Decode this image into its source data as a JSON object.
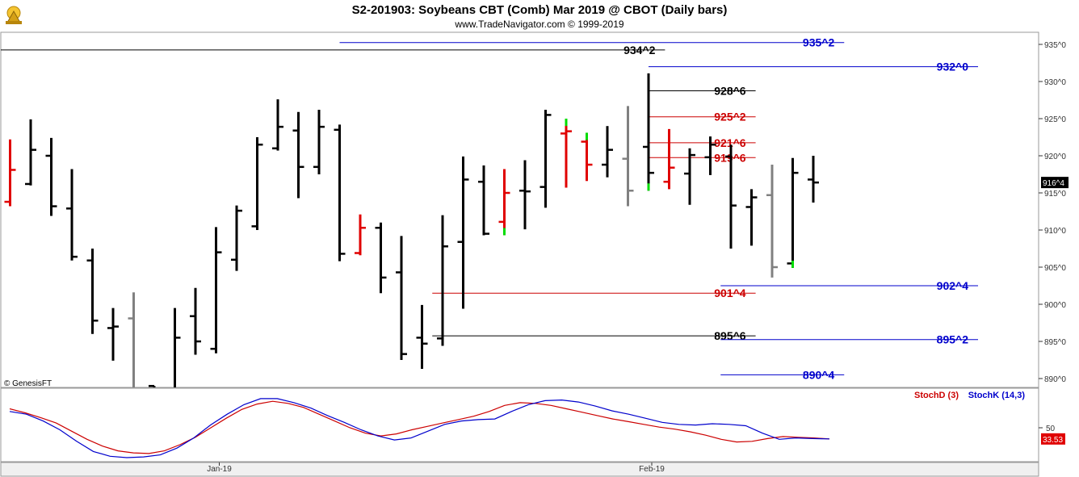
{
  "header": {
    "title": "S2-201903:  Soybeans CBT (Comb) Mar 2019 @ CBOT  (Daily bars)",
    "subtitle": "www.TradeNavigator.com © 1999-2019",
    "copyright": "© GenesisFT"
  },
  "colors": {
    "up_bar": "#000000",
    "down_bar": "#e00000",
    "neutral_bar": "#808080",
    "green_tick": "#00dd00",
    "blue_line": "#0000cc",
    "red_line": "#cc0000",
    "black_line": "#000000",
    "stoch_d": "#cc0000",
    "stoch_k": "#0000cc"
  },
  "chart_data": [
    {
      "type": "ohlc",
      "name": "price",
      "y_unit": "cents (eighths notation)",
      "ylim": [
        888,
        938
      ],
      "y_ticks": [
        890,
        895,
        900,
        905,
        910,
        915,
        920,
        925,
        930,
        935
      ],
      "y_tick_labels": [
        "890^0",
        "895^0",
        "900^0",
        "905^0",
        "910^0",
        "915^0",
        "920^0",
        "925^0",
        "930^0",
        "935^0"
      ],
      "last_price_label": "916^4",
      "x_labels": [
        {
          "label": "Jan-19",
          "index": 10
        },
        {
          "label": "Feb-19",
          "index": 31
        }
      ],
      "bars": [
        {
          "o": 913.8,
          "h": 922.2,
          "l": 913.2,
          "c": 918.1,
          "color": "down"
        },
        {
          "o": 916.2,
          "h": 924.9,
          "l": 916.0,
          "c": 920.8,
          "color": "up"
        },
        {
          "o": 920.0,
          "h": 922.4,
          "l": 911.9,
          "c": 913.2,
          "color": "up"
        },
        {
          "o": 912.9,
          "h": 918.2,
          "l": 905.9,
          "c": 906.4,
          "color": "up"
        },
        {
          "o": 905.9,
          "h": 907.5,
          "l": 896.0,
          "c": 897.8,
          "color": "up"
        },
        {
          "o": 896.8,
          "h": 899.5,
          "l": 892.4,
          "c": 897.0,
          "color": "up"
        },
        {
          "o": 898.1,
          "h": 901.6,
          "l": 885.0,
          "c": 885.0,
          "color": "neutral"
        },
        {
          "o": 889.0,
          "h": 889.0,
          "l": 885.0,
          "c": 885.0,
          "color": "up"
        },
        {
          "o": 886.0,
          "h": 899.5,
          "l": 885.0,
          "c": 895.5,
          "color": "up"
        },
        {
          "o": 898.4,
          "h": 902.2,
          "l": 893.2,
          "c": 895.0,
          "color": "up"
        },
        {
          "o": 894.0,
          "h": 910.4,
          "l": 893.4,
          "c": 907.0,
          "color": "up"
        },
        {
          "o": 906.0,
          "h": 913.3,
          "l": 904.5,
          "c": 912.6,
          "color": "up"
        },
        {
          "o": 910.5,
          "h": 922.5,
          "l": 910.0,
          "c": 921.5,
          "color": "up"
        },
        {
          "o": 921.0,
          "h": 927.6,
          "l": 920.7,
          "c": 923.9,
          "color": "up"
        },
        {
          "o": 923.4,
          "h": 925.9,
          "l": 914.3,
          "c": 918.5,
          "color": "up"
        },
        {
          "o": 918.5,
          "h": 926.2,
          "l": 917.5,
          "c": 923.9,
          "color": "up"
        },
        {
          "o": 923.5,
          "h": 924.2,
          "l": 905.8,
          "c": 906.8,
          "color": "up"
        },
        {
          "o": 906.9,
          "h": 912.1,
          "l": 906.6,
          "c": 910.3,
          "color": "down"
        },
        {
          "o": 910.3,
          "h": 911.0,
          "l": 901.5,
          "c": 903.6,
          "color": "up"
        },
        {
          "o": 904.3,
          "h": 909.2,
          "l": 892.5,
          "c": 893.3,
          "color": "up"
        },
        {
          "o": 895.5,
          "h": 899.9,
          "l": 891.3,
          "c": 894.7,
          "color": "up"
        },
        {
          "o": 895.4,
          "h": 912.0,
          "l": 894.4,
          "c": 907.8,
          "color": "up"
        },
        {
          "o": 908.4,
          "h": 919.9,
          "l": 899.4,
          "c": 916.8,
          "color": "up"
        },
        {
          "o": 916.5,
          "h": 918.7,
          "l": 909.3,
          "c": 909.5,
          "color": "up"
        },
        {
          "o": 911.1,
          "h": 918.2,
          "l": 909.3,
          "c": 915.0,
          "color": "down",
          "green": "low"
        },
        {
          "o": 915.3,
          "h": 919.4,
          "l": 910.1,
          "c": 915.2,
          "color": "up"
        },
        {
          "o": 915.8,
          "h": 926.2,
          "l": 913.0,
          "c": 925.5,
          "color": "up"
        },
        {
          "o": 923.0,
          "h": 925.0,
          "l": 915.7,
          "c": 923.3,
          "color": "down",
          "green": "high"
        },
        {
          "o": 921.9,
          "h": 923.1,
          "l": 916.6,
          "c": 918.8,
          "color": "down",
          "green": "high"
        },
        {
          "o": 918.8,
          "h": 924.0,
          "l": 917.1,
          "c": 920.8,
          "color": "up"
        },
        {
          "o": 919.6,
          "h": 926.7,
          "l": 913.2,
          "c": 915.3,
          "color": "neutral"
        },
        {
          "o": 921.2,
          "h": 931.1,
          "l": 915.3,
          "c": 917.7,
          "color": "up",
          "green": "low"
        },
        {
          "o": 916.5,
          "h": 923.6,
          "l": 915.5,
          "c": 918.4,
          "color": "down"
        },
        {
          "o": 917.6,
          "h": 921.0,
          "l": 913.4,
          "c": 920.1,
          "color": "up"
        },
        {
          "o": 919.8,
          "h": 922.6,
          "l": 917.4,
          "c": 921.5,
          "color": "up"
        },
        {
          "o": 919.9,
          "h": 921.5,
          "l": 907.5,
          "c": 913.3,
          "color": "up"
        },
        {
          "o": 913.1,
          "h": 915.5,
          "l": 907.9,
          "c": 914.4,
          "color": "up"
        },
        {
          "o": 914.7,
          "h": 918.8,
          "l": 903.6,
          "c": 905.0,
          "color": "neutral"
        },
        {
          "o": 905.5,
          "h": 919.7,
          "l": 904.9,
          "c": 917.7,
          "color": "up",
          "green": "low"
        },
        {
          "o": 916.8,
          "h": 920.0,
          "l": 913.7,
          "c": 916.4,
          "color": "up"
        }
      ],
      "levels": [
        {
          "label": "935^2",
          "value": 935.25,
          "color": "blue",
          "from": 16.0,
          "to": 40.5
        },
        {
          "label": "934^2",
          "value": 934.25,
          "color": "black",
          "from": -0.5,
          "to": 31.8
        },
        {
          "label": "932^0",
          "value": 932.0,
          "color": "blue",
          "from": 31.0,
          "to": 47.0
        },
        {
          "label": "928^6",
          "value": 928.75,
          "color": "black",
          "from": 31.0,
          "to": 36.2
        },
        {
          "label": "925^2",
          "value": 925.25,
          "color": "red",
          "from": 31.0,
          "to": 36.2
        },
        {
          "label": "921^6",
          "value": 921.75,
          "color": "red",
          "from": 31.0,
          "to": 36.2
        },
        {
          "label": "919^6",
          "value": 919.75,
          "color": "red",
          "from": 31.0,
          "to": 36.2
        },
        {
          "label": "902^4",
          "value": 902.5,
          "color": "blue",
          "from": 34.5,
          "to": 47.0
        },
        {
          "label": "901^4",
          "value": 901.5,
          "color": "red",
          "from": 20.5,
          "to": 36.2
        },
        {
          "label": "895^6",
          "value": 895.75,
          "color": "black",
          "from": 20.5,
          "to": 36.2
        },
        {
          "label": "895^2",
          "value": 895.25,
          "color": "blue",
          "from": 34.5,
          "to": 47.0
        },
        {
          "label": "890^4",
          "value": 890.5,
          "color": "blue",
          "from": 34.5,
          "to": 40.5
        }
      ]
    },
    {
      "type": "line",
      "name": "stochastics",
      "ylim": [
        0,
        100
      ],
      "y_ticks": [
        50
      ],
      "y_tick_labels": [
        "50"
      ],
      "last_value_label": "33.53",
      "series": [
        {
          "name": "StochD (3)",
          "color": "red",
          "values": [
            78,
            72,
            65,
            57,
            45,
            33,
            23,
            16,
            13,
            12,
            16,
            25,
            36,
            50,
            64,
            77,
            85,
            89,
            86,
            80,
            70,
            60,
            50,
            42,
            38,
            41,
            47,
            52,
            57,
            62,
            67,
            74,
            83,
            87,
            86,
            83,
            78,
            73,
            68,
            63,
            59,
            55,
            51,
            48,
            44,
            39,
            33,
            29,
            30,
            34,
            37,
            36,
            35,
            33.53
          ]
        },
        {
          "name": "StochK (14,3)",
          "color": "blue",
          "values": [
            74,
            70,
            60,
            47,
            30,
            15,
            8,
            6,
            7,
            10,
            20,
            35,
            54,
            70,
            84,
            93,
            93,
            87,
            79,
            68,
            58,
            47,
            38,
            32,
            35,
            45,
            55,
            60,
            62,
            63,
            74,
            84,
            90,
            91,
            88,
            82,
            75,
            70,
            64,
            58,
            55,
            54,
            56,
            55,
            53,
            42,
            33,
            35,
            34,
            33.53
          ]
        }
      ],
      "legend": [
        "StochD (3)",
        "StochK (14,3)"
      ]
    }
  ]
}
